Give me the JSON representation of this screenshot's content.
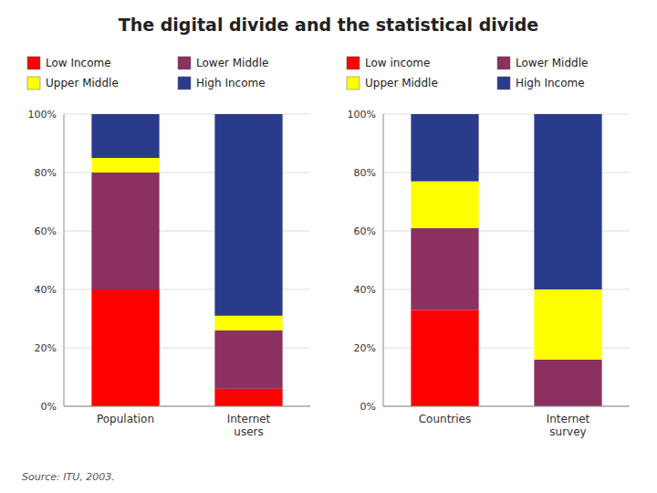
{
  "title": "The digital divide and the statistical divide",
  "annotations": [
    "Source: ITU, 2003."
  ],
  "chart_data": [
    {
      "type": "bar",
      "stacked": true,
      "grid": true,
      "legend": "top",
      "categories": [
        "Population",
        "Internet\nusers"
      ],
      "series": [
        {
          "name": "Low Income",
          "color": "#FF0000",
          "values": [
            40,
            6
          ]
        },
        {
          "name": "Lower Middle",
          "color": "#8B3060",
          "values": [
            40,
            20
          ]
        },
        {
          "name": "Upper Middle",
          "color": "#FFFF00",
          "values": [
            5,
            5
          ]
        },
        {
          "name": "High Income",
          "color": "#2B3B8C",
          "values": [
            15,
            69
          ]
        }
      ],
      "ylim": [
        0,
        100
      ],
      "yticks": [
        {
          "value": 0,
          "label": "0%"
        },
        {
          "value": 20,
          "label": "20%"
        },
        {
          "value": 40,
          "label": "40%"
        },
        {
          "value": 60,
          "label": "60%"
        },
        {
          "value": 80,
          "label": "80%"
        },
        {
          "value": 100,
          "label": "100%"
        }
      ]
    },
    {
      "type": "bar",
      "stacked": true,
      "grid": true,
      "legend": "top",
      "categories": [
        "Countries",
        "Internet\nsurvey"
      ],
      "series": [
        {
          "name": "Low income",
          "color": "#FF0000",
          "values": [
            33,
            0
          ]
        },
        {
          "name": "Lower Middle",
          "color": "#8B3060",
          "values": [
            28,
            16
          ]
        },
        {
          "name": "Upper Middle",
          "color": "#FFFF00",
          "values": [
            16,
            24
          ]
        },
        {
          "name": "High Income",
          "color": "#2B3B8C",
          "values": [
            23,
            60
          ]
        }
      ],
      "ylim": [
        0,
        100
      ],
      "yticks": [
        {
          "value": 0,
          "label": "0%"
        },
        {
          "value": 20,
          "label": "20%"
        },
        {
          "value": 40,
          "label": "40%"
        },
        {
          "value": 60,
          "label": "60%"
        },
        {
          "value": 80,
          "label": "80%"
        },
        {
          "value": 100,
          "label": "100%"
        }
      ]
    }
  ]
}
